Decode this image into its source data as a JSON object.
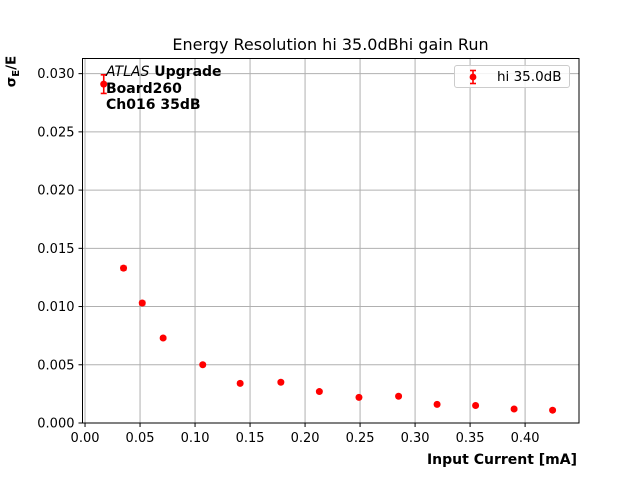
{
  "figure": {
    "background": "#ffffff"
  },
  "annotation": {
    "experiment": "ATLAS",
    "line1_rest": " Upgrade",
    "line2": "Board260",
    "line3": "Ch016 35dB"
  },
  "legend": {
    "label": "hi 35.0dB",
    "marker_color": "#ff0000"
  },
  "ylabel_parts": {
    "sigma": "σ",
    "sub": "E",
    "rest": "/E"
  },
  "chart_data": {
    "type": "scatter",
    "title": "Energy Resolution hi 35.0dBhi gain Run",
    "xlabel": "Input Current [mA]",
    "ylabel": "σE/E",
    "xlim": [
      -0.0023,
      0.449
    ],
    "ylim": [
      0,
      0.0313
    ],
    "xticks": [
      0,
      0.05,
      0.1,
      0.15,
      0.2,
      0.25,
      0.3,
      0.35,
      0.4
    ],
    "xtick_labels": [
      "0.00",
      "0.05",
      "0.10",
      "0.15",
      "0.20",
      "0.25",
      "0.30",
      "0.35",
      "0.40"
    ],
    "yticks": [
      0,
      0.005,
      0.01,
      0.015,
      0.02,
      0.025,
      0.03
    ],
    "ytick_labels": [
      "0.000",
      "0.005",
      "0.010",
      "0.015",
      "0.020",
      "0.025",
      "0.030"
    ],
    "grid": true,
    "grid_color": "#b0b0b0",
    "axis_color": "#000000",
    "legend_position": "upper right",
    "series": [
      {
        "name": "hi 35.0dB",
        "color": "#ff0000",
        "marker": "circle",
        "x": [
          0.017,
          0.035,
          0.052,
          0.071,
          0.107,
          0.141,
          0.178,
          0.213,
          0.249,
          0.285,
          0.32,
          0.355,
          0.39,
          0.425
        ],
        "y": [
          0.0291,
          0.0133,
          0.0103,
          0.0073,
          0.005,
          0.0034,
          0.0035,
          0.0027,
          0.0022,
          0.0023,
          0.0016,
          0.0015,
          0.0012,
          0.0011
        ],
        "yerr": [
          0.0008,
          0.00015,
          0.00015,
          0.0001,
          0.0001,
          0.0001,
          0.0001,
          0.0001,
          0.0001,
          0.0001,
          0.0001,
          0.0001,
          0.0001,
          0.0001
        ]
      }
    ]
  }
}
